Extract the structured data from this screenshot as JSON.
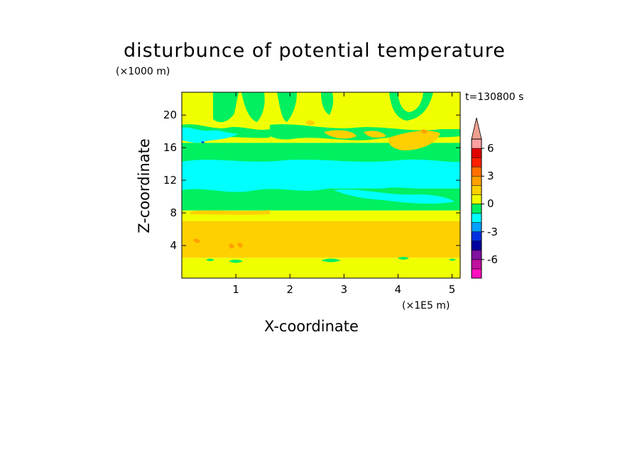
{
  "chart_data": {
    "type": "heatmap",
    "title": "disturbunce of potential temperature",
    "xlabel": "X-coordinate",
    "ylabel": "Z-coordinate",
    "x_unit_label": "(×1E5 m)",
    "y_unit_label": "(×1000 m)",
    "time_label": "t=130800 s",
    "xlim": [
      0,
      5.15
    ],
    "ylim": [
      0,
      22.8
    ],
    "x_ticks": [
      "1",
      "2",
      "3",
      "4",
      "5"
    ],
    "x_tick_values": [
      1,
      2,
      3,
      4,
      5
    ],
    "y_ticks": [
      "4",
      "8",
      "12",
      "16",
      "20"
    ],
    "y_tick_values": [
      4,
      8,
      12,
      16,
      20
    ],
    "colorbar": {
      "levels": [
        -8,
        -7,
        -6,
        -5,
        -4,
        -3,
        -2,
        -1,
        0,
        1,
        2,
        3,
        4,
        5,
        6,
        7,
        8
      ],
      "colors": [
        "#ff10c0",
        "#c010a0",
        "#8010a0",
        "#0000a0",
        "#0030e0",
        "#00a0ff",
        "#00ffff",
        "#00f060",
        "#f0ff00",
        "#ffd000",
        "#ffa000",
        "#ff7000",
        "#ff2000",
        "#e00000",
        "#ffa0a0",
        "#f0a090"
      ],
      "tick_labels": [
        "6",
        "3",
        "0",
        "-3",
        "-6"
      ],
      "tick_values": [
        6,
        3,
        0,
        -3,
        -6
      ],
      "extend": "max"
    },
    "bands": [
      {
        "z_from": 0,
        "z_to": 2.5,
        "value": 0.5
      },
      {
        "z_from": 2.5,
        "z_to": 7.0,
        "value": 1.5
      },
      {
        "z_from": 7.0,
        "z_to": 8.3,
        "value": 0.5
      },
      {
        "z_from": 8.3,
        "z_to": 11.0,
        "value": -0.5
      },
      {
        "z_from": 11.0,
        "z_to": 14.0,
        "value": -1.5
      },
      {
        "z_from": 14.0,
        "z_to": 16.6,
        "value": -0.5
      },
      {
        "z_from": 16.6,
        "z_to": 19.0,
        "value": 0.5
      },
      {
        "z_from": 19.0,
        "z_to": 22.8,
        "value": 0.5
      }
    ]
  }
}
